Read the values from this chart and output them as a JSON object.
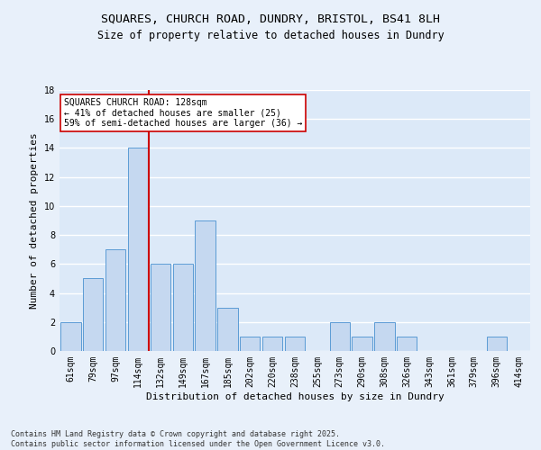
{
  "title_line1": "SQUARES, CHURCH ROAD, DUNDRY, BRISTOL, BS41 8LH",
  "title_line2": "Size of property relative to detached houses in Dundry",
  "xlabel": "Distribution of detached houses by size in Dundry",
  "ylabel": "Number of detached properties",
  "categories": [
    "61sqm",
    "79sqm",
    "97sqm",
    "114sqm",
    "132sqm",
    "149sqm",
    "167sqm",
    "185sqm",
    "202sqm",
    "220sqm",
    "238sqm",
    "255sqm",
    "273sqm",
    "290sqm",
    "308sqm",
    "326sqm",
    "343sqm",
    "361sqm",
    "379sqm",
    "396sqm",
    "414sqm"
  ],
  "values": [
    2,
    5,
    7,
    14,
    6,
    6,
    9,
    3,
    1,
    1,
    1,
    0,
    2,
    1,
    2,
    1,
    0,
    0,
    0,
    1,
    0
  ],
  "bar_color": "#c5d8f0",
  "bar_edge_color": "#5b9bd5",
  "vline_x": 3.5,
  "vline_color": "#cc0000",
  "annotation_text": "SQUARES CHURCH ROAD: 128sqm\n← 41% of detached houses are smaller (25)\n59% of semi-detached houses are larger (36) →",
  "annotation_box_color": "#ffffff",
  "annotation_box_edge": "#cc0000",
  "ylim": [
    0,
    18
  ],
  "yticks": [
    0,
    2,
    4,
    6,
    8,
    10,
    12,
    14,
    16,
    18
  ],
  "footnote": "Contains HM Land Registry data © Crown copyright and database right 2025.\nContains public sector information licensed under the Open Government Licence v3.0.",
  "bg_color": "#dce9f8",
  "fig_bg_color": "#e8f0fa",
  "grid_color": "#ffffff",
  "title_fontsize": 9.5,
  "subtitle_fontsize": 8.5,
  "axis_label_fontsize": 8,
  "tick_fontsize": 7,
  "annotation_fontsize": 7,
  "footnote_fontsize": 6
}
